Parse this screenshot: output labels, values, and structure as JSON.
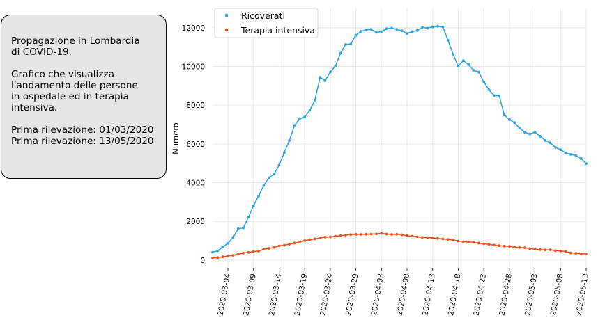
{
  "info_box": {
    "line1": "Propagazione in Lombardia",
    "line2": "di COVID-19.",
    "line3": "Grafico che visualizza",
    "line4": "l'andamento delle persone",
    "line5": "in ospedale ed in terapia",
    "line6": "intensiva.",
    "line7": "Prima rilevazione: 01/03/2020",
    "line8": "Prima rilevazione: 13/05/2020"
  },
  "chart_data": {
    "type": "line",
    "title": "",
    "xlabel": "",
    "ylabel": "Numero",
    "ylim": [
      -400,
      13000
    ],
    "xlim": [
      "2020-03-01",
      "2020-05-13"
    ],
    "yticks": [
      0,
      2000,
      4000,
      6000,
      8000,
      10000,
      12000
    ],
    "xticks": [
      "2020-03-04",
      "2020-03-09",
      "2020-03-14",
      "2020-03-19",
      "2020-03-24",
      "2020-03-29",
      "2020-04-03",
      "2020-04-08",
      "2020-04-13",
      "2020-04-18",
      "2020-04-23",
      "2020-04-28",
      "2020-05-03",
      "2020-05-08",
      "2020-05-13"
    ],
    "grid": true,
    "legend_position": "top-left",
    "x_start_date": "2020-03-01",
    "series": [
      {
        "name": "Ricoverati",
        "color": "#29a3e0",
        "values": [
          406,
          478,
          680,
          864,
          1169,
          1622,
          1661,
          2217,
          2802,
          3319,
          3852,
          4247,
          4435,
          4898,
          5550,
          6171,
          6953,
          7285,
          7387,
          7732,
          8258,
          9439,
          9266,
          9711,
          10026,
          10681,
          11137,
          11152,
          11613,
          11815,
          11883,
          11914,
          11762,
          11800,
          11950,
          11980,
          11914,
          11845,
          11700,
          11800,
          11855,
          12019,
          11980,
          12040,
          12077,
          12040,
          11349,
          10630,
          10020,
          10300,
          10100,
          9798,
          9714,
          9200,
          8800,
          8500,
          8488,
          7500,
          7255,
          7100,
          6825,
          6600,
          6510,
          6600,
          6400,
          6179,
          6056,
          5817,
          5700,
          5538,
          5458,
          5400,
          5243,
          4985
        ]
      },
      {
        "name": "Terapia intensiva",
        "color": "#e8531b",
        "values": [
          106,
          127,
          167,
          209,
          244,
          309,
          359,
          399,
          440,
          466,
          560,
          605,
          650,
          732,
          767,
          823,
          879,
          924,
          1006,
          1050,
          1093,
          1142,
          1183,
          1194,
          1236,
          1263,
          1292,
          1319,
          1328,
          1324,
          1330,
          1343,
          1351,
          1381,
          1343,
          1326,
          1330,
          1305,
          1263,
          1236,
          1202,
          1174,
          1163,
          1143,
          1117,
          1092,
          1071,
          1041,
          983,
          952,
          938,
          917,
          874,
          839,
          814,
          773,
          744,
          721,
          706,
          672,
          654,
          633,
          593,
          563,
          536,
          528,
          535,
          486,
          469,
          440,
          367,
          350,
          330,
          309
        ]
      }
    ]
  }
}
